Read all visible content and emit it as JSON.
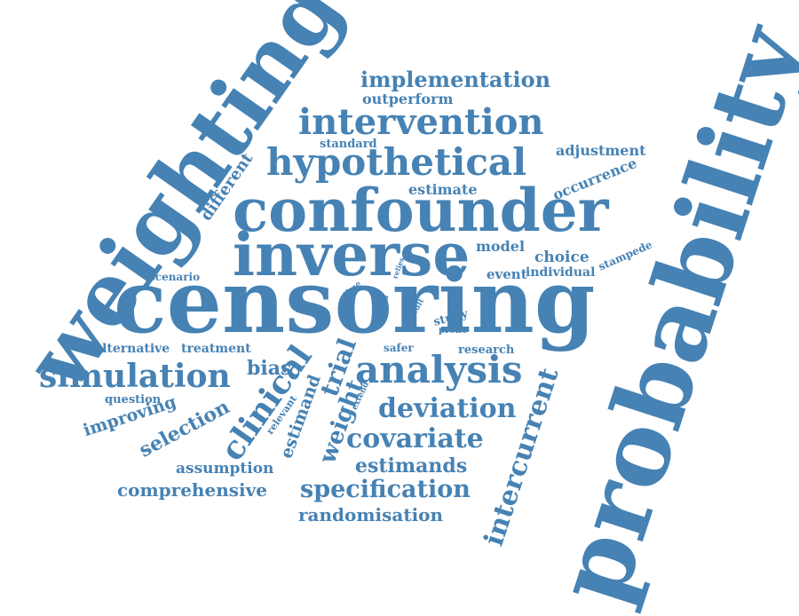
{
  "theme": {
    "word_color": "#4682B4",
    "background": "#ffffff"
  },
  "words": {
    "weighting": "weighting",
    "censoring": "censoring",
    "probability": "probability",
    "confounder": "confounder",
    "inverse": "inverse",
    "hypothetical": "hypothetical",
    "intervention": "intervention",
    "implementation": "implementation",
    "outperform": "outperform",
    "standard": "standard",
    "adjustment": "adjustment",
    "occurrence": "occurrence",
    "different": "different",
    "estimate": "estimate",
    "model": "model",
    "choice": "choice",
    "stampede": "stampede",
    "event": "event",
    "individual": "individual",
    "scenario": "scenario",
    "time": "time",
    "relies": "relies",
    "ice": "ice",
    "arm": "arm",
    "data": "data",
    "result": "result",
    "study": "study",
    "prone": "prone",
    "safer": "safer",
    "research": "research",
    "alternative": "alternative",
    "treatment": "treatment",
    "simulation": "simulation",
    "bias": "bias",
    "clinical": "clinical",
    "trial": "trial",
    "analysis": "analysis",
    "question": "question",
    "improving": "improving",
    "selection": "selection",
    "relevant": "relevant",
    "estimand": "estimand",
    "extend": "extend",
    "weight": "weight",
    "deviation": "deviation",
    "intercurrent": "intercurrent",
    "covariate": "covariate",
    "estimands": "estimands",
    "assumption": "assumption",
    "comprehensive": "comprehensive",
    "specification": "specification",
    "randomisation": "randomisation"
  }
}
